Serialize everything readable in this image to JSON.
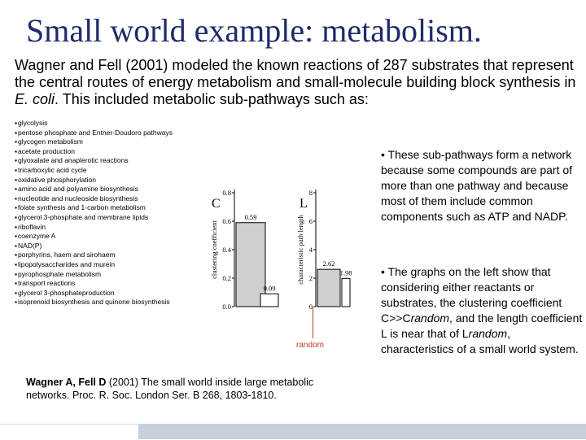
{
  "title": "Small world example: metabolism.",
  "intro": {
    "before_ecoli": "Wagner and Fell (2001) modeled the known reactions of 287 substrates that represent the central routes of energy metabolism and small-molecule building block synthesis in ",
    "ecoli": "E. coli",
    "after_ecoli": ". This included metabolic sub-pathways such as:"
  },
  "pathways": [
    "glycolysis",
    "pentose phosphate and Entner-Doudoro pathways",
    "glycogen metabolism",
    "acetate production",
    "glyoxalate and anaplerotic reactions",
    "tricarboxylic acid cycle",
    "oxidative phosphorylation",
    "amino acid and polyamine biosynthesis",
    "nucleotide and nucleoside biosynthesis",
    "folate synthesis and 1-carbon metabolism",
    "glycerol 3-phosphate and membrane lipids",
    "riboflavin",
    "coenzyme A",
    "NAD(P)",
    "porphyrins, haem and sirohaem",
    "lipopolysaccharides and murein",
    "pyrophosphate metabolism",
    "transport reactions",
    "glycerol 3-phosphateproduction",
    "isoprenoid biosynthesis and quinone biosynthesis"
  ],
  "right_text": {
    "p1": "• These sub-pathways form a network because some compounds are part of more than one pathway and because most of them include common components such as ATP and NADP.",
    "p2_a": "• The graphs on the left show that considering either reactants or substrates, the clustering coefficient C>>C",
    "p2_b": "random",
    "p2_c": ", and the length coefficient L is near that of L",
    "p2_d": "random",
    "p2_e": ", characteristics of a small world system."
  },
  "random_label": "random",
  "citation": {
    "authors": "Wagner A, Fell D",
    "rest": " (2001) The small world inside large metabolic networks. Proc. R. Soc. London Ser. B 268, 1803-1810."
  },
  "chart_data": [
    {
      "type": "bar",
      "panel_label": "C",
      "ylabel": "clustering coefficient",
      "ylim": [
        0.0,
        0.8
      ],
      "yticks": [
        "0.8",
        "0.6",
        "0.4",
        "0.2",
        "0.0"
      ],
      "values": [
        0.59,
        0.09
      ],
      "data_labels": [
        "0.59",
        "0.09"
      ]
    },
    {
      "type": "bar",
      "panel_label": "L",
      "ylabel": "characteristic path length",
      "ylim": [
        0,
        8
      ],
      "yticks": [
        "8",
        "6",
        "4",
        "2",
        "0"
      ],
      "values": [
        2.62,
        1.98
      ],
      "data_labels": [
        "2.62",
        "1.98"
      ]
    }
  ]
}
